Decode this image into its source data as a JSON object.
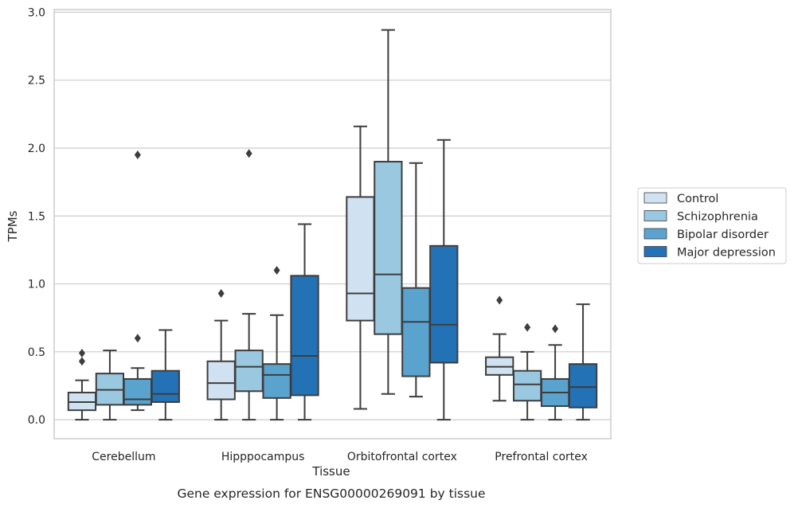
{
  "chart_data": {
    "type": "box",
    "xlabel": "Tissue",
    "ylabel": "TPMs",
    "caption": "Gene expression for ENSG00000269091 by tissue",
    "ylim": [
      -0.14,
      3.02
    ],
    "yticks": [
      "0.0",
      "0.5",
      "1.0",
      "1.5",
      "2.0",
      "2.5",
      "3.0"
    ],
    "grid": "horizontal",
    "legend_position": "right",
    "categories": [
      "Cerebellum",
      "Hipppocampus",
      "Orbitofrontal cortex",
      "Prefrontal cortex"
    ],
    "series": [
      {
        "name": "Control",
        "color": "#d0e2f2",
        "boxes": [
          {
            "whislo": 0.0,
            "q1": 0.07,
            "med": 0.13,
            "q3": 0.2,
            "whishi": 0.29,
            "fliers": [
              0.43,
              0.49
            ]
          },
          {
            "whislo": 0.0,
            "q1": 0.15,
            "med": 0.27,
            "q3": 0.43,
            "whishi": 0.73,
            "fliers": [
              0.93
            ]
          },
          {
            "whislo": 0.08,
            "q1": 0.73,
            "med": 0.93,
            "q3": 1.64,
            "whishi": 2.16,
            "fliers": []
          },
          {
            "whislo": 0.14,
            "q1": 0.33,
            "med": 0.39,
            "q3": 0.46,
            "whishi": 0.63,
            "fliers": [
              0.88
            ]
          }
        ]
      },
      {
        "name": "Schizophrenia",
        "color": "#9ac8e0",
        "boxes": [
          {
            "whislo": 0.0,
            "q1": 0.11,
            "med": 0.22,
            "q3": 0.34,
            "whishi": 0.51,
            "fliers": []
          },
          {
            "whislo": 0.0,
            "q1": 0.21,
            "med": 0.39,
            "q3": 0.51,
            "whishi": 0.78,
            "fliers": [
              1.96
            ]
          },
          {
            "whislo": 0.19,
            "q1": 0.63,
            "med": 1.07,
            "q3": 1.9,
            "whishi": 2.87,
            "fliers": []
          },
          {
            "whislo": 0.0,
            "q1": 0.14,
            "med": 0.26,
            "q3": 0.36,
            "whishi": 0.5,
            "fliers": [
              0.68
            ]
          }
        ]
      },
      {
        "name": "Bipolar disorder",
        "color": "#5ba3cf",
        "boxes": [
          {
            "whislo": 0.07,
            "q1": 0.11,
            "med": 0.15,
            "q3": 0.3,
            "whishi": 0.38,
            "fliers": [
              0.6,
              1.95
            ]
          },
          {
            "whislo": 0.0,
            "q1": 0.16,
            "med": 0.33,
            "q3": 0.41,
            "whishi": 0.77,
            "fliers": [
              1.1
            ]
          },
          {
            "whislo": 0.17,
            "q1": 0.32,
            "med": 0.72,
            "q3": 0.97,
            "whishi": 1.89,
            "fliers": []
          },
          {
            "whislo": 0.0,
            "q1": 0.1,
            "med": 0.2,
            "q3": 0.3,
            "whishi": 0.55,
            "fliers": [
              0.67
            ]
          }
        ]
      },
      {
        "name": "Major depression",
        "color": "#2372b5",
        "boxes": [
          {
            "whislo": 0.0,
            "q1": 0.13,
            "med": 0.19,
            "q3": 0.36,
            "whishi": 0.66,
            "fliers": []
          },
          {
            "whislo": 0.0,
            "q1": 0.18,
            "med": 0.47,
            "q3": 1.06,
            "whishi": 1.44,
            "fliers": []
          },
          {
            "whislo": 0.0,
            "q1": 0.42,
            "med": 0.7,
            "q3": 1.28,
            "whishi": 2.06,
            "fliers": []
          },
          {
            "whislo": 0.0,
            "q1": 0.09,
            "med": 0.24,
            "q3": 0.41,
            "whishi": 0.85,
            "fliers": []
          }
        ]
      }
    ]
  }
}
